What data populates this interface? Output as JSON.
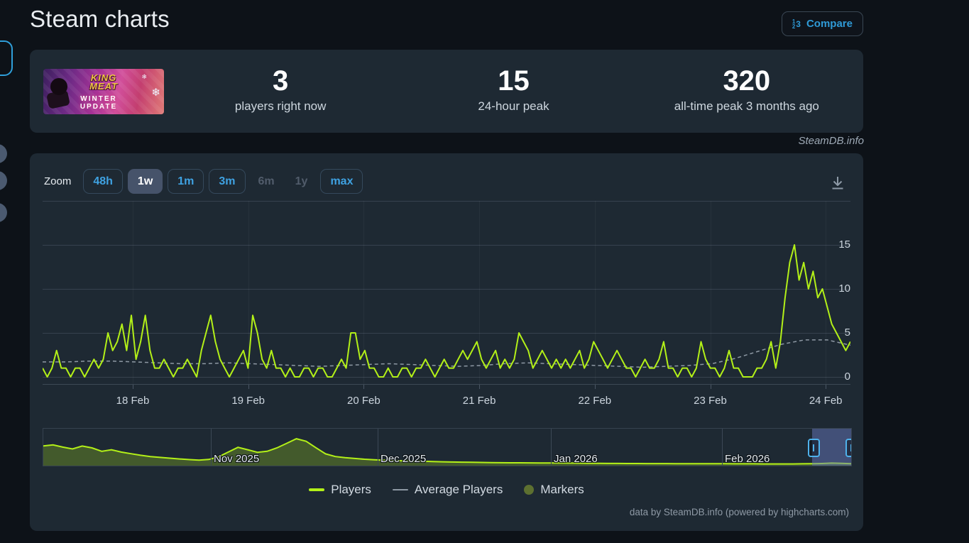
{
  "header": {
    "title": "Steam charts",
    "compare_label": "Compare"
  },
  "stats_card": {
    "capsule": {
      "title_line1": "KING",
      "title_line2": "MEAT",
      "subtitle_line1": "WINTER",
      "subtitle_line2": "UPDATE",
      "snowflake_glyph": "❄"
    },
    "stats": [
      {
        "value": "3",
        "label": "players right now"
      },
      {
        "value": "15",
        "label": "24-hour peak"
      },
      {
        "value": "320",
        "label": "all-time peak 3 months ago"
      }
    ]
  },
  "watermark": "SteamDB.info",
  "chart_panel": {
    "zoom_label": "Zoom",
    "zoom_buttons": [
      {
        "label": "48h",
        "state": "normal"
      },
      {
        "label": "1w",
        "state": "selected"
      },
      {
        "label": "1m",
        "state": "normal"
      },
      {
        "label": "3m",
        "state": "normal"
      },
      {
        "label": "6m",
        "state": "disabled"
      },
      {
        "label": "1y",
        "state": "disabled"
      },
      {
        "label": "max",
        "state": "normal"
      }
    ],
    "legend": [
      {
        "label": "Players",
        "swatch": "line",
        "color": "#b3f018"
      },
      {
        "label": "Average Players",
        "swatch": "line",
        "color": "#8e99a4"
      },
      {
        "label": "Markers",
        "swatch": "circle",
        "color": "#5d7030"
      }
    ],
    "credit": "data by SteamDB.info (powered by highcharts.com)"
  },
  "chart_data": {
    "type": "line",
    "title": "Concurrent players, 1 week",
    "x_axis": {
      "tick_labels": [
        "18 Feb",
        "19 Feb",
        "20 Feb",
        "21 Feb",
        "22 Feb",
        "23 Feb",
        "24 Feb"
      ]
    },
    "y_axis": {
      "tick_labels": [
        0,
        5,
        10,
        15
      ],
      "ylim": [
        0,
        20
      ],
      "grid": true
    },
    "legend_position": "bottom-center",
    "series": [
      {
        "name": "Players",
        "color": "#b3f018",
        "style": "solid",
        "values": [
          1,
          0,
          1,
          3,
          1,
          1,
          0,
          1,
          1,
          0,
          1,
          2,
          1,
          2,
          5,
          3,
          4,
          6,
          3,
          7,
          2,
          4,
          7,
          3,
          1,
          1,
          2,
          1,
          0,
          1,
          1,
          2,
          1,
          0,
          3,
          5,
          7,
          4,
          2,
          1,
          0,
          1,
          2,
          3,
          1,
          7,
          5,
          2,
          1,
          3,
          1,
          1,
          0,
          1,
          0,
          0,
          1,
          1,
          0,
          1,
          1,
          0,
          0,
          1,
          2,
          1,
          5,
          5,
          2,
          3,
          1,
          1,
          0,
          0,
          1,
          0,
          0,
          1,
          1,
          0,
          1,
          1,
          2,
          1,
          0,
          1,
          2,
          1,
          1,
          2,
          3,
          2,
          3,
          4,
          2,
          1,
          2,
          3,
          1,
          2,
          1,
          2,
          5,
          4,
          3,
          1,
          2,
          3,
          2,
          1,
          2,
          1,
          2,
          1,
          2,
          3,
          1,
          2,
          4,
          3,
          2,
          1,
          2,
          3,
          2,
          1,
          1,
          0,
          1,
          2,
          1,
          1,
          2,
          4,
          1,
          1,
          0,
          1,
          1,
          0,
          1,
          4,
          2,
          1,
          1,
          0,
          1,
          3,
          1,
          1,
          0,
          0,
          0,
          1,
          1,
          2,
          4,
          1,
          4,
          9,
          13,
          15,
          11,
          13,
          10,
          12,
          9,
          10,
          8,
          6,
          5,
          4,
          3,
          4
        ]
      },
      {
        "name": "Average Players",
        "color": "#8e99a4",
        "style": "dashed",
        "values": [
          1.7,
          1.7,
          1.8,
          1.8,
          1.7,
          1.6,
          1.5,
          1.5,
          1.6,
          1.5,
          1.4,
          1.3,
          1.2,
          1.3,
          1.4,
          1.5,
          1.4,
          1.3,
          1.2,
          1.3,
          1.5,
          1.6,
          1.5,
          1.4,
          1.3,
          1.2,
          1.1,
          1.2,
          1.3,
          1.5,
          2.1,
          2.9,
          3.7,
          4.2,
          4.2,
          3.6
        ]
      }
    ],
    "navigator": {
      "month_labels": [
        "Nov 2025",
        "Dec 2025",
        "Jan 2026",
        "Feb 2026"
      ],
      "ymax": 410,
      "values": [
        230,
        242,
        215,
        192,
        228,
        205,
        162,
        182,
        152,
        132,
        112,
        96,
        86,
        76,
        66,
        58,
        52,
        60,
        92,
        152,
        212,
        182,
        150,
        162,
        205,
        262,
        320,
        288,
        208,
        130,
        96,
        82,
        72,
        62,
        56,
        50,
        46,
        42,
        40,
        38,
        34,
        30,
        28,
        26,
        24,
        22,
        20,
        19,
        18,
        18,
        17,
        16,
        15,
        15,
        14,
        13,
        12,
        11,
        10,
        10,
        9,
        9,
        8,
        8,
        8,
        7,
        7,
        7,
        6,
        6,
        6,
        5,
        5,
        5,
        4,
        4,
        4,
        4,
        5,
        6,
        9,
        14,
        11,
        6
      ],
      "selected_region": "right edge (current week)"
    }
  },
  "colors": {
    "page_bg": "#0d1218",
    "card_bg": "#1e2933",
    "accent_blue": "#2f9ad6",
    "line_lime": "#b3f018",
    "avg_gray": "#8e99a4",
    "marker_olive": "#5d7030",
    "selection_blue": "#6577bd"
  }
}
